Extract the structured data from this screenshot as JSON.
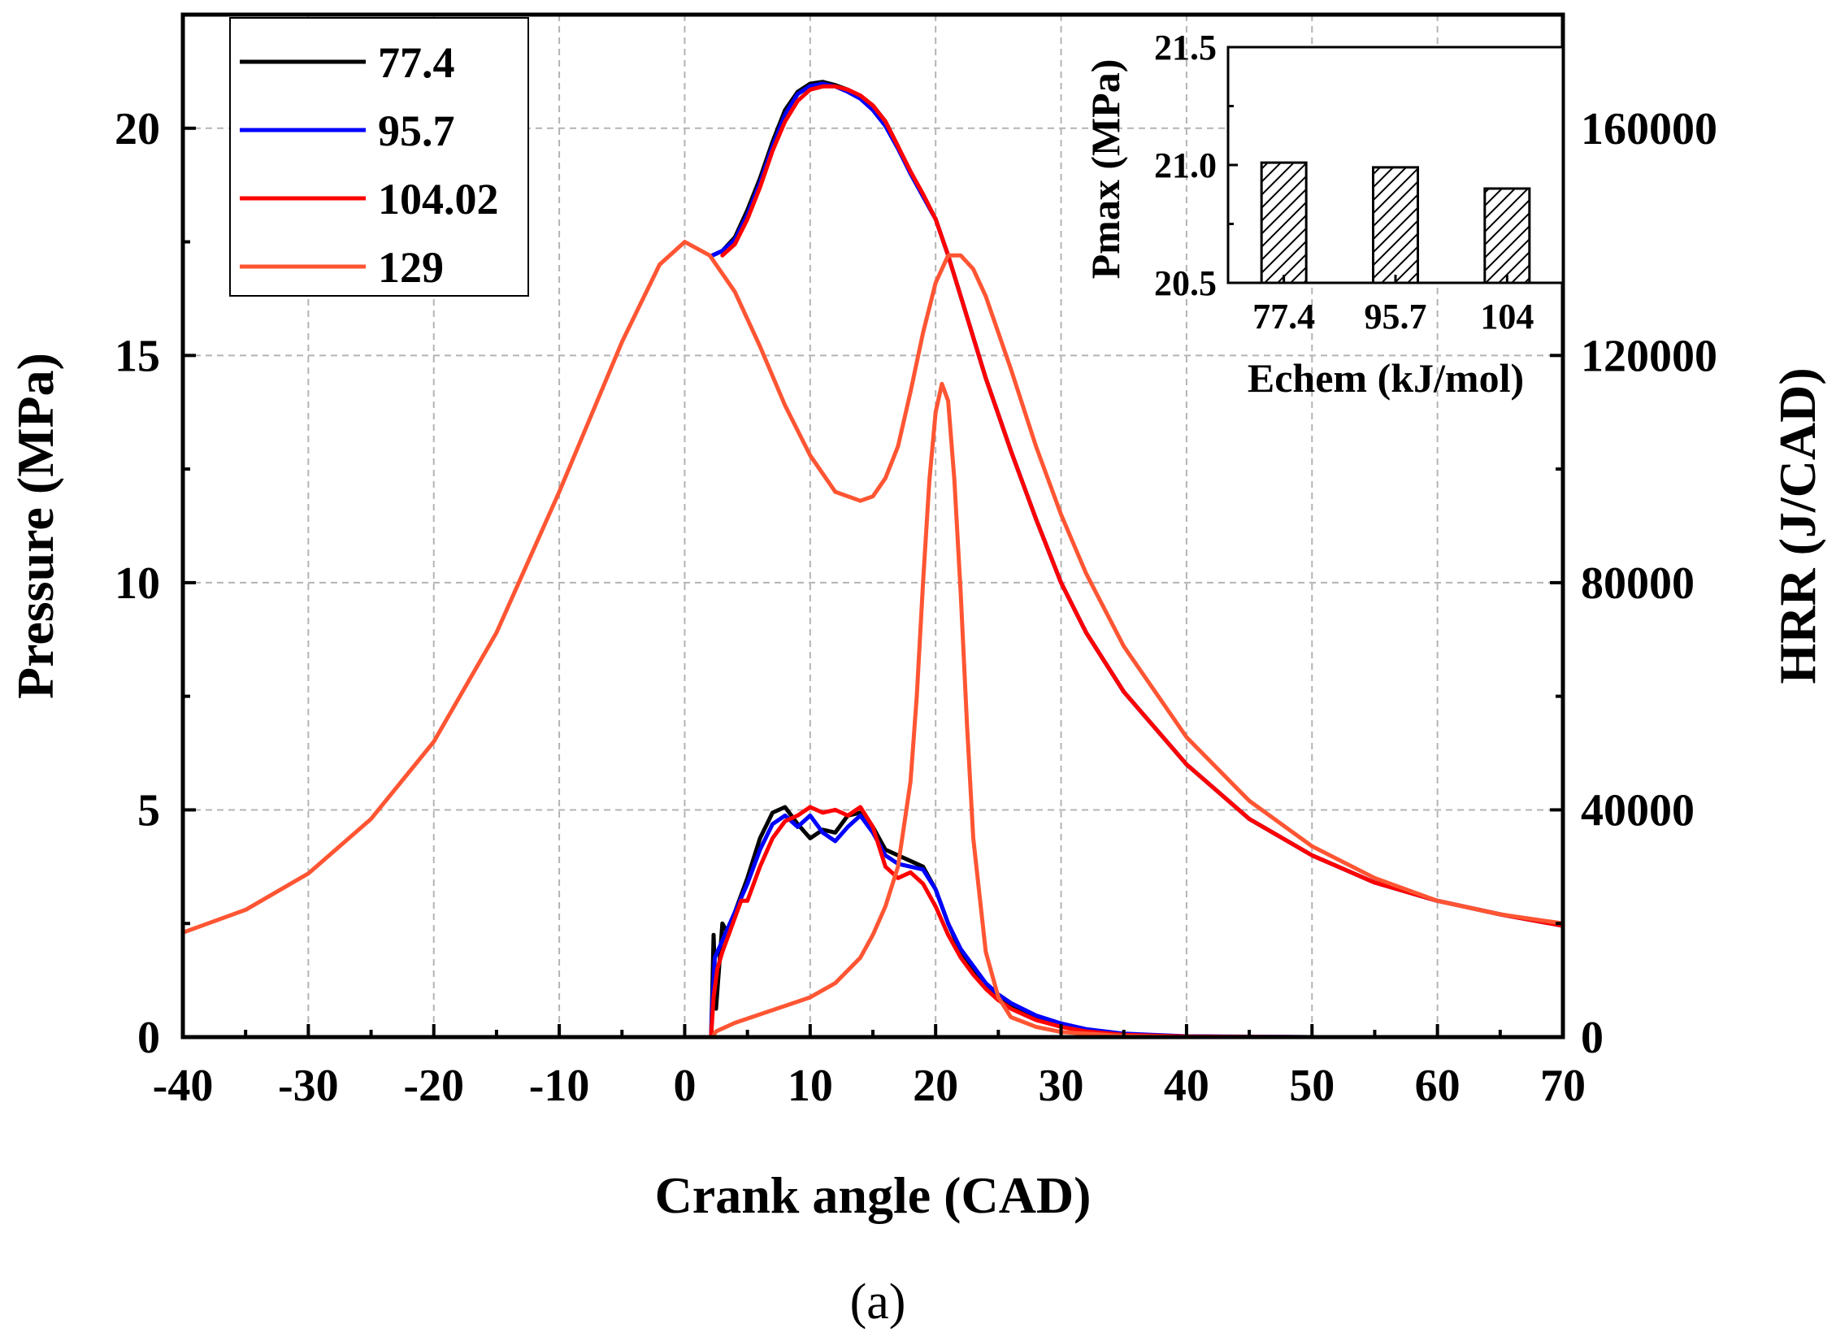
{
  "chart_data": [
    {
      "type": "line",
      "caption": "(a)",
      "xlabel": "Crank angle (CAD)",
      "ylabel_left": "Pressure (MPa)",
      "ylabel_right": "HRR (J/CAD)",
      "xlim": [
        -40,
        70
      ],
      "ylim_left": [
        0,
        22.5
      ],
      "ylim_right": [
        0,
        180000
      ],
      "x_ticks": [
        "-40",
        "-30",
        "-20",
        "-10",
        "0",
        "10",
        "20",
        "30",
        "40",
        "50",
        "60",
        "70"
      ],
      "y_left_ticks": [
        "0",
        "5",
        "10",
        "15",
        "20"
      ],
      "y_right_ticks": [
        "0",
        "40000",
        "80000",
        "120000",
        "160000"
      ],
      "grid": true,
      "legend_position": "top-left",
      "series": [
        {
          "name": "77.4",
          "color": "#000000",
          "axis": "left",
          "x": [
            2.2,
            3,
            4,
            5,
            6,
            7,
            8,
            9,
            10,
            11,
            12,
            13,
            14,
            15,
            16,
            17,
            18,
            19,
            20,
            21,
            22,
            23,
            24,
            25,
            26,
            28,
            30,
            32,
            35,
            40,
            45,
            50,
            55,
            60,
            65,
            70
          ],
          "y": [
            17.2,
            17.3,
            17.6,
            18.2,
            18.9,
            19.7,
            20.4,
            20.8,
            20.98,
            21.02,
            20.95,
            20.85,
            20.7,
            20.5,
            20.15,
            19.6,
            19.0,
            18.5,
            18.0,
            17.2,
            16.3,
            15.4,
            14.5,
            13.7,
            12.9,
            11.4,
            10.0,
            8.9,
            7.6,
            6.0,
            4.8,
            4.0,
            3.4,
            3.0,
            2.7,
            2.45
          ]
        },
        {
          "name": "95.7",
          "color": "#0000ff",
          "axis": "left",
          "x": [
            2.2,
            3,
            4,
            5,
            6,
            7,
            8,
            9,
            10,
            11,
            12,
            13,
            14,
            15,
            16,
            17,
            18,
            19,
            20,
            21,
            22,
            23,
            24,
            25,
            26,
            28,
            30,
            32,
            35,
            40,
            45,
            50,
            55,
            60,
            65,
            70
          ],
          "y": [
            17.2,
            17.3,
            17.55,
            18.1,
            18.8,
            19.6,
            20.3,
            20.75,
            20.93,
            20.98,
            20.92,
            20.8,
            20.65,
            20.4,
            20.05,
            19.55,
            19.0,
            18.5,
            18.0,
            17.2,
            16.3,
            15.4,
            14.5,
            13.7,
            12.9,
            11.4,
            10.0,
            8.9,
            7.6,
            6.0,
            4.8,
            4.0,
            3.4,
            3.0,
            2.7,
            2.45
          ]
        },
        {
          "name": "104.02",
          "color": "#ff0000",
          "axis": "left",
          "x": [
            3,
            4,
            5,
            6,
            7,
            8,
            9,
            10,
            11,
            12,
            13,
            14,
            15,
            16,
            17,
            18,
            19,
            20,
            21,
            22,
            23,
            24,
            25,
            26,
            28,
            30,
            32,
            35,
            40,
            45,
            50,
            55,
            60,
            65,
            70
          ],
          "y": [
            17.2,
            17.45,
            18.0,
            18.7,
            19.5,
            20.15,
            20.6,
            20.85,
            20.92,
            20.92,
            20.85,
            20.72,
            20.5,
            20.15,
            19.6,
            19.05,
            18.55,
            18.0,
            17.2,
            16.3,
            15.4,
            14.5,
            13.7,
            12.9,
            11.4,
            10.0,
            8.9,
            7.6,
            6.0,
            4.8,
            4.0,
            3.4,
            3.0,
            2.7,
            2.45
          ]
        },
        {
          "name": "129",
          "color": "#ff5533",
          "axis": "left",
          "x": [
            -40,
            -35,
            -30,
            -25,
            -20,
            -15,
            -10,
            -5,
            -2,
            0,
            2,
            4,
            6,
            8,
            10,
            12,
            14,
            15,
            16,
            17,
            18,
            19,
            20,
            21,
            22,
            23,
            24,
            26,
            28,
            30,
            32,
            35,
            40,
            45,
            50,
            55,
            60,
            65,
            70
          ],
          "y": [
            2.3,
            2.8,
            3.6,
            4.8,
            6.5,
            8.9,
            12.0,
            15.3,
            17.0,
            17.5,
            17.2,
            16.4,
            15.2,
            13.9,
            12.8,
            12.0,
            11.8,
            11.9,
            12.3,
            13.0,
            14.2,
            15.5,
            16.6,
            17.2,
            17.2,
            16.9,
            16.3,
            14.7,
            13.0,
            11.5,
            10.2,
            8.6,
            6.6,
            5.2,
            4.2,
            3.5,
            3.0,
            2.7,
            2.5
          ]
        },
        {
          "name": "77.4 HRR",
          "color": "#000000",
          "axis": "right",
          "x": [
            -40,
            0,
            2.1,
            2.2,
            2.3,
            2.5,
            3,
            3.5,
            4,
            5,
            6,
            7,
            8,
            9,
            10,
            11,
            12,
            13,
            14,
            15,
            16,
            17,
            18,
            19,
            20,
            21,
            22,
            23,
            24,
            25,
            26,
            28,
            30,
            32,
            35,
            40,
            50,
            70
          ],
          "y": [
            0,
            0,
            0,
            8000,
            18000,
            5000,
            20000,
            18000,
            22000,
            28000,
            35000,
            39500,
            40500,
            37500,
            35000,
            36500,
            36000,
            39000,
            39500,
            37000,
            33000,
            32000,
            31000,
            30000,
            26000,
            20000,
            15000,
            12000,
            9000,
            7000,
            5500,
            3500,
            2200,
            1300,
            500,
            100,
            0,
            0
          ]
        },
        {
          "name": "95.7 HRR",
          "color": "#0000ff",
          "axis": "right",
          "x": [
            -40,
            0,
            2.1,
            2.2,
            2.4,
            3,
            4,
            5,
            6,
            7,
            8,
            9,
            10,
            11,
            12,
            13,
            14,
            15,
            16,
            17,
            18,
            19,
            20,
            21,
            22,
            23,
            24,
            25,
            26,
            28,
            30,
            32,
            35,
            40,
            50,
            70
          ],
          "y": [
            0,
            0,
            0,
            6000,
            14000,
            17000,
            22000,
            27000,
            33000,
            37500,
            39000,
            37000,
            39000,
            36000,
            34500,
            37000,
            39000,
            36000,
            32000,
            30500,
            30000,
            29500,
            26000,
            20000,
            15500,
            12500,
            9500,
            7500,
            6000,
            3800,
            2400,
            1400,
            600,
            150,
            0,
            0
          ]
        },
        {
          "name": "104.02 HRR",
          "color": "#ff0000",
          "axis": "right",
          "x": [
            -40,
            0,
            2.1,
            2.3,
            2.6,
            3,
            3.5,
            4,
            4.5,
            5,
            6,
            7,
            8,
            9,
            10,
            11,
            12,
            13,
            14,
            15,
            16,
            17,
            18,
            19,
            20,
            21,
            22,
            23,
            24,
            25,
            26,
            28,
            30,
            32,
            35,
            40,
            50,
            70
          ],
          "y": [
            0,
            0,
            0,
            7000,
            12000,
            15000,
            18000,
            21000,
            24000,
            24000,
            30000,
            35000,
            38000,
            39000,
            40500,
            39500,
            40000,
            39000,
            40500,
            37000,
            30000,
            28000,
            29000,
            27000,
            23000,
            18000,
            14000,
            11000,
            8500,
            6500,
            5000,
            3000,
            1800,
            1000,
            400,
            100,
            0,
            0
          ]
        },
        {
          "name": "129 HRR",
          "color": "#ff5533",
          "axis": "right",
          "x": [
            -40,
            0,
            2.2,
            2.5,
            4,
            6,
            8,
            10,
            12,
            14,
            15,
            16,
            17,
            18,
            18.5,
            19,
            19.5,
            20,
            20.5,
            21,
            21.5,
            22,
            22.5,
            23,
            24,
            25,
            26,
            28,
            30,
            35,
            40,
            50,
            70
          ],
          "y": [
            0,
            0,
            0,
            1000,
            2500,
            4000,
            5500,
            7000,
            9500,
            14000,
            18000,
            23000,
            30000,
            45000,
            60000,
            80000,
            98000,
            110000,
            115000,
            112000,
            98000,
            78000,
            55000,
            35000,
            15000,
            7000,
            3500,
            1800,
            900,
            200,
            0,
            0,
            0
          ]
        }
      ]
    },
    {
      "type": "bar",
      "inset": true,
      "xlabel": "Echem (kJ/mol)",
      "ylabel": "Pmax (MPa)",
      "categories": [
        "77.4",
        "95.7",
        "104"
      ],
      "values": [
        21.01,
        20.99,
        20.9
      ],
      "ylim": [
        20.5,
        21.5
      ],
      "y_ticks": [
        "20.5",
        "21.0",
        "21.5"
      ],
      "bar_fill": "hatched"
    }
  ]
}
